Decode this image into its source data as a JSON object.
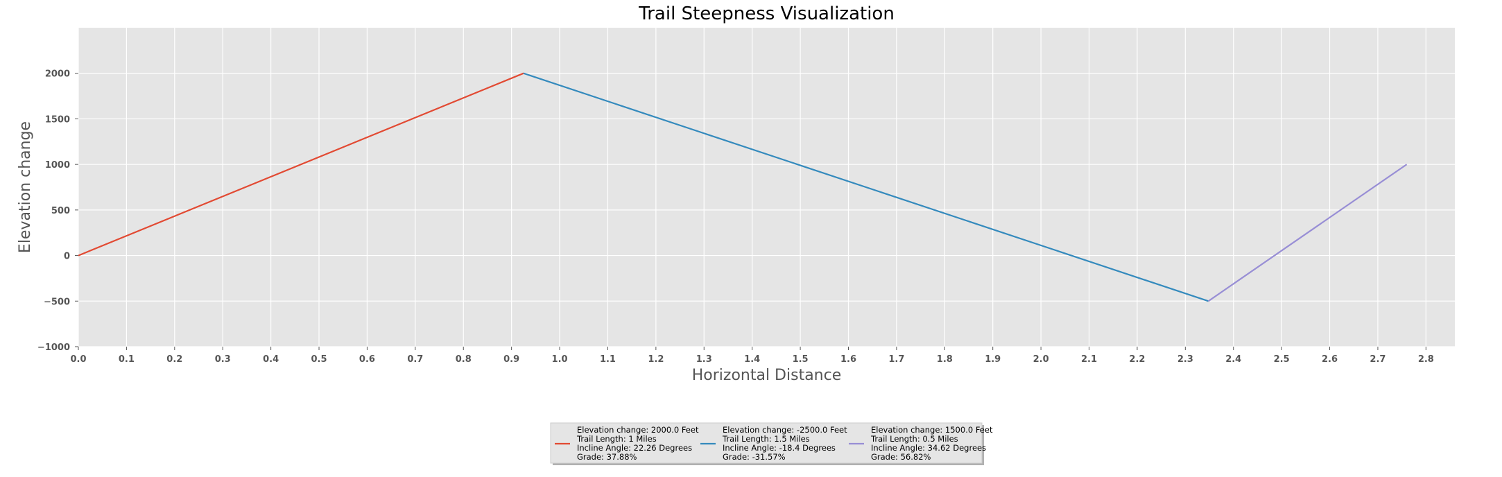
{
  "chart_data": {
    "type": "line",
    "title": "Trail Steepness Visualization",
    "xlabel": "Horizontal Distance",
    "ylabel": "Elevation change",
    "xlim": [
      0.0,
      2.86
    ],
    "ylim": [
      -1000,
      2500
    ],
    "x_ticks": [
      "0.0",
      "0.1",
      "0.2",
      "0.3",
      "0.4",
      "0.5",
      "0.6",
      "0.7",
      "0.8",
      "0.9",
      "1.0",
      "1.1",
      "1.2",
      "1.3",
      "1.4",
      "1.5",
      "1.6",
      "1.7",
      "1.8",
      "1.9",
      "2.0",
      "2.1",
      "2.2",
      "2.3",
      "2.4",
      "2.5",
      "2.6",
      "2.7",
      "2.8"
    ],
    "y_ticks": [
      "−1000",
      "−500",
      "0",
      "500",
      "1000",
      "1500",
      "2000"
    ],
    "grid": true,
    "legend_position": "bottom-center",
    "series": [
      {
        "color": "#E24A33",
        "x": [
          0.0,
          0.925
        ],
        "y": [
          0,
          2000
        ],
        "legend_lines": [
          "Elevation change: 2000.0 Feet",
          "Trail Length: 1 Miles",
          "Incline Angle: 22.26 Degrees",
          "Grade: 37.88%"
        ]
      },
      {
        "color": "#348ABD",
        "x": [
          0.925,
          2.348
        ],
        "y": [
          2000,
          -500
        ],
        "legend_lines": [
          "Elevation change: -2500.0 Feet",
          "Trail Length: 1.5 Miles",
          "Incline Angle: -18.4 Degrees",
          "Grade: -31.57%"
        ]
      },
      {
        "color": "#988ED5",
        "x": [
          2.348,
          2.76
        ],
        "y": [
          -500,
          1000
        ],
        "legend_lines": [
          "Elevation change: 1500.0 Feet",
          "Trail Length: 0.5 Miles",
          "Incline Angle: 34.62 Degrees",
          "Grade: 56.82%"
        ]
      }
    ]
  }
}
